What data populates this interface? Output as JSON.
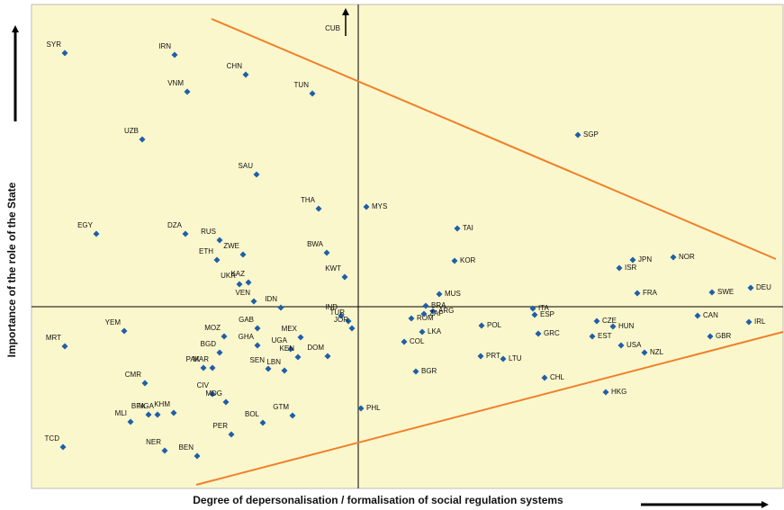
{
  "chart_data": {
    "type": "scatter",
    "x_label": "Degree of depersonalisation / formalisation of social regulation systems",
    "y_label": "Importance of the role of the State",
    "xlim": [
      -36.3,
      47.2
    ],
    "ylim": [
      -20.2,
      33.6
    ],
    "color": "#1f5fa8",
    "background": "#fbf7cc",
    "labels": [
      "SYR",
      "IRN",
      "VNM",
      "CHN",
      "TUN",
      "UZB",
      "SGP",
      "SAU",
      "THA",
      "MYS",
      "EGY",
      "DZA",
      "RUS",
      "TAI",
      "ZWE",
      "ETH",
      "BWA",
      "KOR",
      "JPN",
      "NOR",
      "ISR",
      "KAZ",
      "UKR",
      "KWT",
      "DEU",
      "VEN",
      "IDN",
      "BRA",
      "MUS",
      "FRA",
      "SWE",
      "ITA",
      "ROM",
      "ARG",
      "ZAF",
      "LKA",
      "ESP",
      "CZE",
      "CAN",
      "IRL",
      "HUN",
      "YEM",
      "IND",
      "TUR",
      "JOR",
      "GAB",
      "MOZ",
      "MEX",
      "POL",
      "GRC",
      "EST",
      "GBR",
      "BGD",
      "GHA",
      "UGA",
      "COL",
      "USA",
      "NZL",
      "MRT",
      "KEN",
      "PRT",
      "LTU",
      "DOM",
      "PAK",
      "MAR",
      "SEN",
      "LBN",
      "BGR",
      "CMR",
      "CHL",
      "CIV",
      "MDG",
      "HKG",
      "PHL",
      "MLI",
      "BFA",
      "NGA",
      "KHM",
      "GTM",
      "BOL",
      "PER",
      "NER",
      "TCD",
      "BEN"
    ],
    "x": [
      -32.6,
      -20.4,
      -19.0,
      -12.5,
      -5.1,
      -24.0,
      24.4,
      -11.3,
      -4.4,
      0.9,
      -29.1,
      -19.2,
      -15.4,
      11.0,
      -12.8,
      -15.7,
      -3.5,
      10.7,
      30.5,
      35.0,
      29.0,
      -12.2,
      -13.2,
      -1.5,
      43.6,
      -11.6,
      -8.6,
      7.5,
      9.0,
      31.0,
      39.3,
      19.4,
      5.9,
      8.3,
      7.3,
      7.1,
      19.6,
      26.5,
      37.7,
      43.4,
      28.3,
      -26.0,
      -1.9,
      -1.1,
      -0.7,
      -11.2,
      -14.9,
      -6.4,
      13.7,
      20.0,
      26.0,
      39.1,
      -15.4,
      -11.2,
      -7.5,
      5.1,
      29.2,
      31.8,
      -32.6,
      -6.7,
      13.6,
      16.1,
      -3.4,
      -17.2,
      -16.2,
      -10.0,
      -8.2,
      6.4,
      -23.7,
      20.7,
      -16.2,
      -14.7,
      27.5,
      0.3,
      -25.3,
      -23.3,
      -22.3,
      -20.5,
      -7.3,
      -10.6,
      -14.1,
      -21.5,
      -32.8,
      -17.9
    ],
    "y": [
      28.2,
      28.0,
      23.9,
      25.8,
      23.7,
      18.6,
      19.1,
      14.7,
      10.9,
      11.1,
      8.1,
      8.1,
      7.4,
      8.7,
      5.8,
      5.2,
      6.0,
      5.1,
      5.2,
      5.5,
      4.3,
      2.7,
      2.5,
      3.3,
      2.1,
      0.6,
      -0.1,
      0.1,
      1.4,
      1.5,
      1.6,
      -0.2,
      -1.3,
      -0.5,
      -0.8,
      -2.8,
      -0.9,
      -1.6,
      -1.0,
      -1.7,
      -2.2,
      -2.7,
      -1.0,
      -1.6,
      -2.4,
      -2.4,
      -3.3,
      -3.4,
      -2.1,
      -3.0,
      -3.3,
      -3.3,
      -5.1,
      -4.3,
      -4.7,
      -3.9,
      -4.3,
      -5.1,
      -4.4,
      -5.6,
      -5.5,
      -5.8,
      -5.5,
      -6.8,
      -6.8,
      -6.9,
      -7.1,
      -7.2,
      -8.5,
      -7.9,
      -9.7,
      -10.6,
      -9.5,
      -11.3,
      -12.8,
      -12.0,
      -12.0,
      -11.8,
      -12.1,
      -12.9,
      -14.2,
      -16.0,
      -15.6,
      -16.6
    ],
    "offscale": {
      "label": "CUB",
      "x": -1.4,
      "y": 30.1
    },
    "lines": [
      {
        "color": "#f07f2a",
        "x": [
          -16.3,
          46.4
        ],
        "y": [
          32.0,
          5.3
        ]
      },
      {
        "color": "#f07f2a",
        "x": [
          -18.0,
          47.2
        ],
        "y": [
          -19.8,
          -2.8
        ]
      }
    ]
  }
}
